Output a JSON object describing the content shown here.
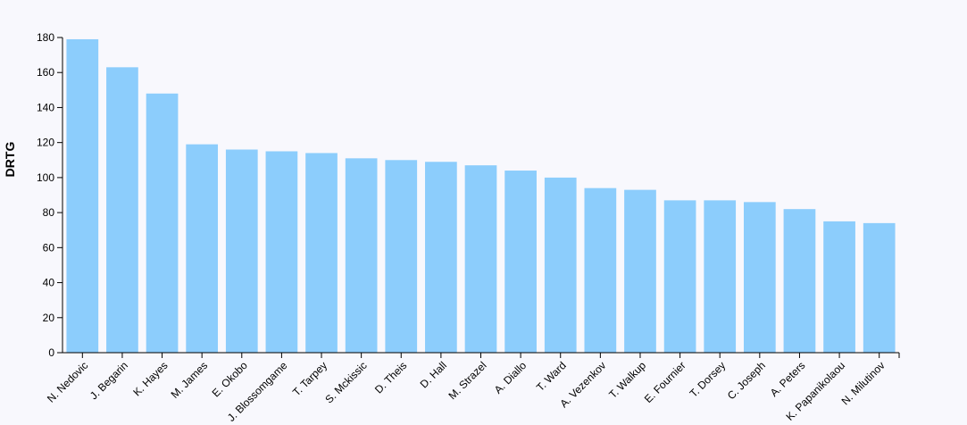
{
  "colors": {
    "background": "#f8f8fd",
    "bar": "#8ccdfc",
    "axis": "#000000"
  },
  "chart_data": {
    "type": "bar",
    "title": "",
    "xlabel": "",
    "ylabel": "DRTG",
    "ylim": [
      0,
      180
    ],
    "yticks": [
      0,
      20,
      40,
      60,
      80,
      100,
      120,
      140,
      160,
      180
    ],
    "grid": false,
    "legend": "none",
    "categories": [
      "N. Nedovic",
      "J. Begarin",
      "K. Hayes",
      "M. James",
      "E. Okobo",
      "J. Blossomgame",
      "T. Tarpey",
      "S. Mckissic",
      "D. Theis",
      "D. Hall",
      "M. Strazel",
      "A. Diallo",
      "T. Ward",
      "A. Vezenkov",
      "T. Walkup",
      "E. Fournier",
      "T. Dorsey",
      "C. Joseph",
      "A. Peters",
      "K. Papanikolaou",
      "N. Milutinov"
    ],
    "values": [
      179,
      163,
      148,
      119,
      116,
      115,
      114,
      111,
      110,
      109,
      107,
      104,
      100,
      94,
      93,
      87,
      87,
      86,
      82,
      75,
      74
    ]
  }
}
